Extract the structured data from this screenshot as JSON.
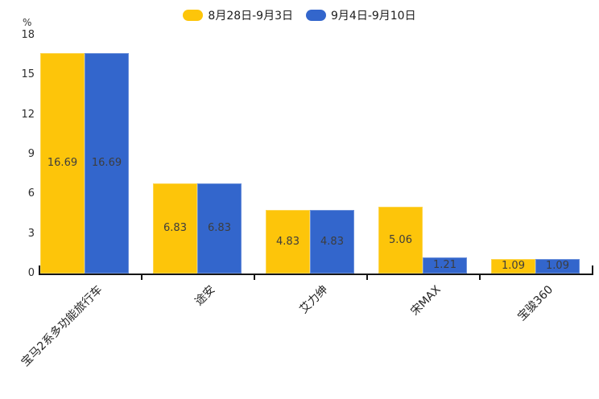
{
  "chart_data": {
    "type": "bar",
    "title": "",
    "unit": "%",
    "categories": [
      "宝马2系多功能旅行车",
      "途安",
      "艾力绅",
      "宋MAX",
      "宝骏360"
    ],
    "series": [
      {
        "name": "8月28日-9月3日",
        "color": "#FDC50A",
        "values": [
          16.69,
          6.83,
          4.83,
          5.06,
          1.09
        ]
      },
      {
        "name": "9月4日-9月10日",
        "color": "#3366CC",
        "values": [
          16.69,
          6.83,
          4.83,
          1.21,
          1.09
        ]
      }
    ],
    "value_labels": [
      [
        "16.69",
        "6.83",
        "4.83",
        "5.06",
        "1.09"
      ],
      [
        "16.69",
        "6.83",
        "4.83",
        "1.21",
        "1.09"
      ]
    ],
    "ylim": [
      0,
      18
    ],
    "yticks": [
      0,
      3,
      6,
      9,
      12,
      15,
      18
    ],
    "legend_position": "top-center",
    "grid": false,
    "axis_color": "#161616",
    "label_color": "#3d3d3d"
  }
}
